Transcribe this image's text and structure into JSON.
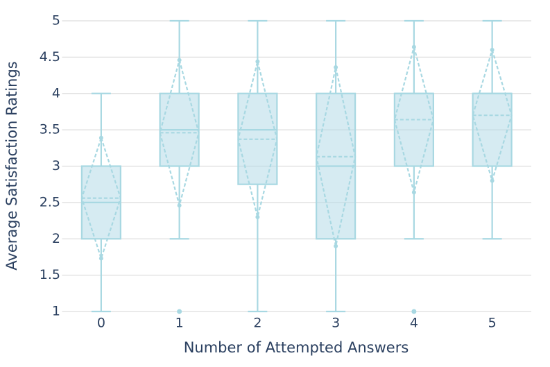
{
  "chart_data": {
    "type": "box",
    "x_label": "Number of Attempted Answers",
    "y_label": "Average Satisfaction Ratings",
    "categories": [
      "0",
      "1",
      "2",
      "3",
      "4",
      "5"
    ],
    "color": "#a8d8e2",
    "fill": "rgba(173,216,230,0.5)",
    "boxes": [
      {
        "min": 1,
        "q1": 2,
        "median": 2.5,
        "q3": 3,
        "max": 4,
        "mean": 2.56,
        "sd": 0.83
      },
      {
        "min": 2,
        "q1": 3,
        "median": 3.5,
        "q3": 4,
        "max": 5,
        "mean": 3.46,
        "sd": 1.0,
        "outliers": [
          1
        ]
      },
      {
        "min": 1,
        "q1": 2.75,
        "median": 3.5,
        "q3": 4,
        "max": 5,
        "mean": 3.37,
        "sd": 1.07
      },
      {
        "min": 1,
        "q1": 2,
        "median": 3,
        "q3": 4,
        "max": 5,
        "mean": 3.13,
        "sd": 1.23
      },
      {
        "min": 2,
        "q1": 3,
        "median": 4,
        "q3": 4,
        "max": 5,
        "mean": 3.64,
        "sd": 1.0,
        "outliers": [
          1
        ]
      },
      {
        "min": 2,
        "q1": 3,
        "median": 4,
        "q3": 4,
        "max": 5,
        "mean": 3.7,
        "sd": 0.9
      }
    ],
    "ylim": [
      1,
      5
    ],
    "yticks": [
      1,
      1.5,
      2,
      2.5,
      3,
      3.5,
      4,
      4.5,
      5
    ],
    "grid": true
  }
}
